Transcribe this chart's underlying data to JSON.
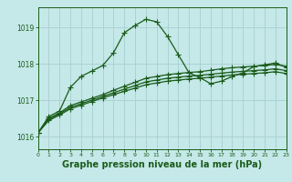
{
  "background_color": "#c5e8e8",
  "grid_color": "#a8d0d0",
  "line_color": "#1a5c1a",
  "xlabel": "Graphe pression niveau de la mer (hPa)",
  "xlabel_fontsize": 7,
  "ylabel_ticks": [
    1016,
    1017,
    1018,
    1019
  ],
  "xlim": [
    0,
    23
  ],
  "ylim": [
    1015.65,
    1019.55
  ],
  "x_ticks": [
    0,
    1,
    2,
    3,
    4,
    5,
    6,
    7,
    8,
    9,
    10,
    11,
    12,
    13,
    14,
    15,
    16,
    17,
    18,
    19,
    20,
    21,
    22,
    23
  ],
  "line1": [
    1016.1,
    1016.55,
    1016.7,
    1017.35,
    1017.65,
    1017.8,
    1017.95,
    1018.3,
    1018.85,
    1019.05,
    1019.22,
    1019.15,
    1018.75,
    1018.25,
    1017.75,
    1017.62,
    1017.45,
    1017.52,
    1017.65,
    1017.75,
    1017.92,
    1017.97,
    1018.02,
    1017.9
  ],
  "line2": [
    1016.1,
    1016.5,
    1016.65,
    1016.85,
    1016.95,
    1017.05,
    1017.15,
    1017.27,
    1017.38,
    1017.49,
    1017.6,
    1017.65,
    1017.7,
    1017.73,
    1017.76,
    1017.78,
    1017.82,
    1017.86,
    1017.89,
    1017.91,
    1017.93,
    1017.95,
    1017.98,
    1017.93
  ],
  "line3": [
    1016.1,
    1016.47,
    1016.62,
    1016.8,
    1016.9,
    1017.0,
    1017.1,
    1017.2,
    1017.3,
    1017.4,
    1017.5,
    1017.55,
    1017.6,
    1017.63,
    1017.66,
    1017.68,
    1017.71,
    1017.74,
    1017.77,
    1017.79,
    1017.81,
    1017.83,
    1017.86,
    1017.81
  ],
  "line4": [
    1016.1,
    1016.44,
    1016.59,
    1016.76,
    1016.86,
    1016.96,
    1017.06,
    1017.15,
    1017.24,
    1017.33,
    1017.42,
    1017.47,
    1017.52,
    1017.55,
    1017.58,
    1017.6,
    1017.63,
    1017.66,
    1017.69,
    1017.71,
    1017.73,
    1017.75,
    1017.78,
    1017.73
  ]
}
